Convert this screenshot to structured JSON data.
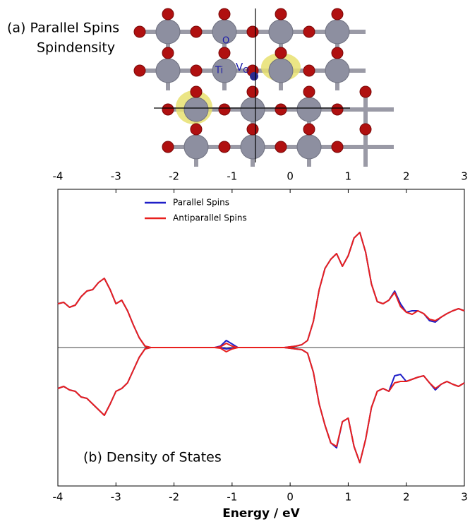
{
  "figure_a": {
    "label": "(a) Parallel Spins",
    "sublabel": "Spindensity",
    "atom_o": "O",
    "atom_ti": "Ti",
    "atom_v": "V",
    "atom_v_sub": "O"
  },
  "chart_data": {
    "type": "line",
    "annotation": "(b) Density of States",
    "xlabel": "Energy / eV",
    "xlim": [
      -4,
      3
    ],
    "xticks": [
      -4,
      -3,
      -2,
      -1,
      0,
      1,
      2,
      3
    ],
    "ylim": [
      -1.96,
      2.24
    ],
    "x": [
      -4.0,
      -3.9,
      -3.8,
      -3.7,
      -3.6,
      -3.5,
      -3.4,
      -3.3,
      -3.2,
      -3.1,
      -3.0,
      -2.9,
      -2.8,
      -2.7,
      -2.6,
      -2.5,
      -2.4,
      -2.3,
      -2.2,
      -2.1,
      -2.0,
      -1.9,
      -1.8,
      -1.7,
      -1.6,
      -1.5,
      -1.4,
      -1.3,
      -1.2,
      -1.1,
      -1.0,
      -0.9,
      -0.8,
      -0.7,
      -0.6,
      -0.5,
      -0.4,
      -0.3,
      -0.2,
      -0.1,
      0.0,
      0.1,
      0.2,
      0.3,
      0.4,
      0.5,
      0.6,
      0.7,
      0.8,
      0.9,
      1.0,
      1.1,
      1.2,
      1.3,
      1.4,
      1.5,
      1.6,
      1.7,
      1.8,
      1.9,
      2.0,
      2.1,
      2.2,
      2.3,
      2.4,
      2.5,
      2.6,
      2.7,
      2.8,
      2.9,
      3.0
    ],
    "series": [
      {
        "name": "Parallel Spins",
        "color": "#1f1fc8",
        "values": [
          0.62,
          0.64,
          0.57,
          0.6,
          0.72,
          0.8,
          0.82,
          0.92,
          0.98,
          0.82,
          0.62,
          0.67,
          0.52,
          0.32,
          0.14,
          0.02,
          0,
          0,
          0,
          0,
          0,
          0,
          0,
          0,
          0,
          0,
          0,
          0,
          0.02,
          0.1,
          0.05,
          0,
          0,
          0,
          0,
          0,
          0,
          0,
          0,
          0,
          0.01,
          0.02,
          0.04,
          0.1,
          0.37,
          0.82,
          1.12,
          1.25,
          1.33,
          1.15,
          1.3,
          1.55,
          1.63,
          1.35,
          0.9,
          0.65,
          0.62,
          0.67,
          0.8,
          0.62,
          0.5,
          0.52,
          0.52,
          0.48,
          0.38,
          0.36,
          0.43,
          0.48,
          0.52,
          0.55,
          0.52
        ],
        "values_down": [
          -0.58,
          -0.55,
          -0.6,
          -0.62,
          -0.7,
          -0.72,
          -0.8,
          -0.88,
          -0.96,
          -0.8,
          -0.62,
          -0.58,
          -0.5,
          -0.32,
          -0.14,
          -0.02,
          0,
          0,
          0,
          0,
          0,
          0,
          0,
          0,
          0,
          0,
          0,
          0,
          0,
          -0.02,
          -0.01,
          0,
          0,
          0,
          0,
          0,
          0,
          0,
          0,
          0,
          -0.01,
          -0.02,
          -0.03,
          -0.08,
          -0.35,
          -0.8,
          -1.1,
          -1.35,
          -1.42,
          -1.05,
          -1.0,
          -1.4,
          -1.63,
          -1.3,
          -0.85,
          -0.62,
          -0.58,
          -0.62,
          -0.4,
          -0.38,
          -0.48,
          -0.45,
          -0.42,
          -0.4,
          -0.5,
          -0.6,
          -0.52,
          -0.48,
          -0.52,
          -0.55,
          -0.5
        ]
      },
      {
        "name": "Antiparallel Spins",
        "color": "#e8201e",
        "values": [
          0.62,
          0.64,
          0.57,
          0.6,
          0.72,
          0.8,
          0.82,
          0.92,
          0.98,
          0.82,
          0.62,
          0.67,
          0.52,
          0.32,
          0.14,
          0.02,
          0,
          0,
          0,
          0,
          0,
          0,
          0,
          0,
          0,
          0,
          0,
          0,
          0.01,
          0.06,
          0.02,
          0,
          0,
          0,
          0,
          0,
          0,
          0,
          0,
          0,
          0.01,
          0.02,
          0.04,
          0.1,
          0.37,
          0.82,
          1.12,
          1.25,
          1.33,
          1.15,
          1.3,
          1.55,
          1.63,
          1.35,
          0.9,
          0.65,
          0.62,
          0.67,
          0.78,
          0.58,
          0.5,
          0.47,
          0.52,
          0.48,
          0.4,
          0.38,
          0.43,
          0.48,
          0.52,
          0.55,
          0.52
        ],
        "values_down": [
          -0.58,
          -0.55,
          -0.6,
          -0.62,
          -0.7,
          -0.72,
          -0.8,
          -0.88,
          -0.96,
          -0.8,
          -0.62,
          -0.58,
          -0.5,
          -0.32,
          -0.14,
          -0.02,
          0,
          0,
          0,
          0,
          0,
          0,
          0,
          0,
          0,
          0,
          0,
          0,
          -0.01,
          -0.06,
          -0.02,
          0,
          0,
          0,
          0,
          0,
          0,
          0,
          0,
          0,
          -0.01,
          -0.02,
          -0.03,
          -0.08,
          -0.35,
          -0.8,
          -1.1,
          -1.35,
          -1.4,
          -1.05,
          -1.0,
          -1.4,
          -1.63,
          -1.3,
          -0.85,
          -0.62,
          -0.58,
          -0.62,
          -0.5,
          -0.48,
          -0.48,
          -0.45,
          -0.42,
          -0.4,
          -0.5,
          -0.58,
          -0.52,
          -0.48,
          -0.52,
          -0.55,
          -0.5
        ]
      }
    ]
  }
}
